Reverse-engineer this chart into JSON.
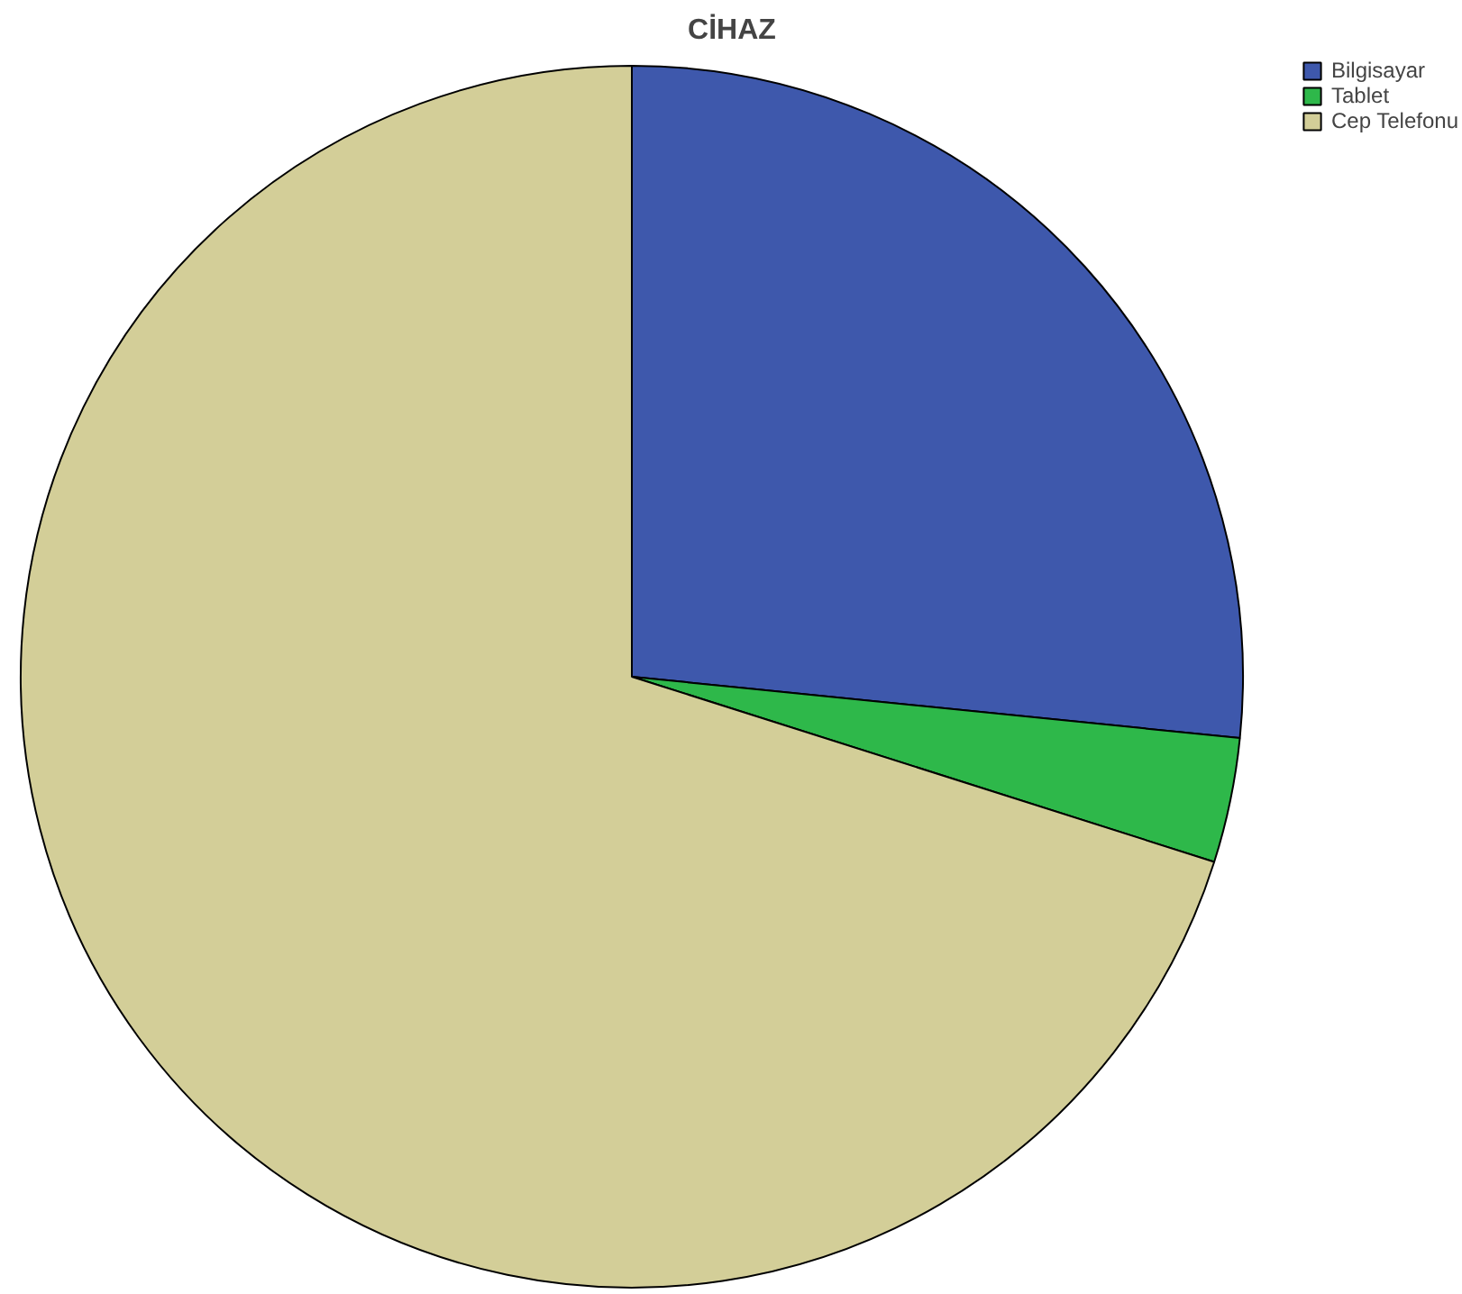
{
  "chart_data": {
    "type": "pie",
    "title": "CİHAZ",
    "categories": [
      "Bilgisayar",
      "Tablet",
      "Cep Telefonu"
    ],
    "values": [
      26.6,
      3.3,
      70.1
    ],
    "colors": [
      "#3e58ac",
      "#2eb84a",
      "#d3ce98"
    ],
    "legend": "top right"
  }
}
